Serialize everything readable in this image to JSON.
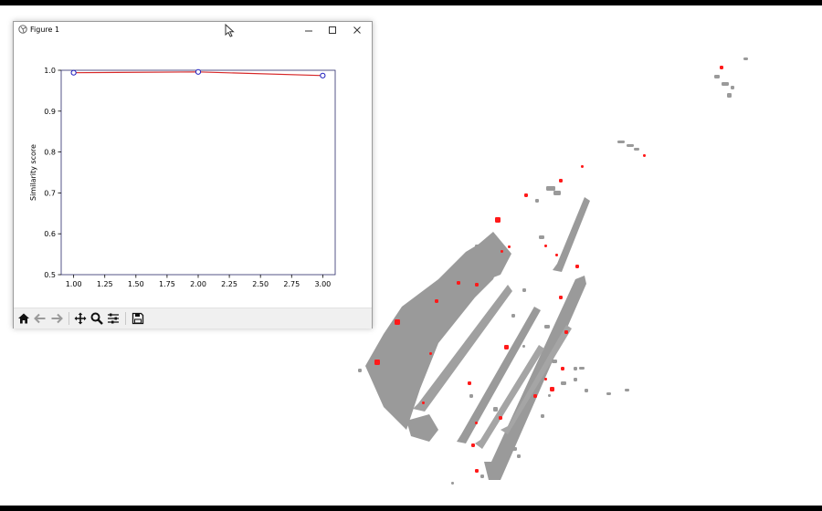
{
  "window": {
    "title": "Figure 1",
    "controls": [
      "minimize",
      "maximize",
      "close"
    ]
  },
  "toolbar": {
    "buttons": [
      "home",
      "back",
      "forward",
      "pan",
      "zoom",
      "configure-subplots",
      "save"
    ]
  },
  "colors": {
    "line": "#d62728",
    "marker_edge": "#1f1fbf",
    "axes": "#2a2a6a",
    "scan_gray": "#9a9a9a",
    "scan_red": "#ff1a1a"
  },
  "chart_data": {
    "type": "line",
    "title": "",
    "xlabel": "",
    "ylabel": "Similarity score",
    "x": [
      1.0,
      2.0,
      3.0
    ],
    "series": [
      {
        "values": [
          0.994,
          0.996,
          0.987
        ]
      }
    ],
    "xlim": [
      0.9,
      3.1
    ],
    "ylim": [
      0.5,
      1.0
    ],
    "xticks": [
      "1.00",
      "1.25",
      "1.50",
      "1.75",
      "2.00",
      "2.25",
      "2.50",
      "2.75",
      "3.00"
    ],
    "xtick_values": [
      1.0,
      1.25,
      1.5,
      1.75,
      2.0,
      2.25,
      2.5,
      2.75,
      3.0
    ],
    "yticks": [
      "0.5",
      "0.6",
      "0.7",
      "0.8",
      "0.9",
      "1.0"
    ],
    "ytick_values": [
      0.5,
      0.6,
      0.7,
      0.8,
      0.9,
      1.0
    ],
    "grid": false,
    "legend": "none"
  }
}
